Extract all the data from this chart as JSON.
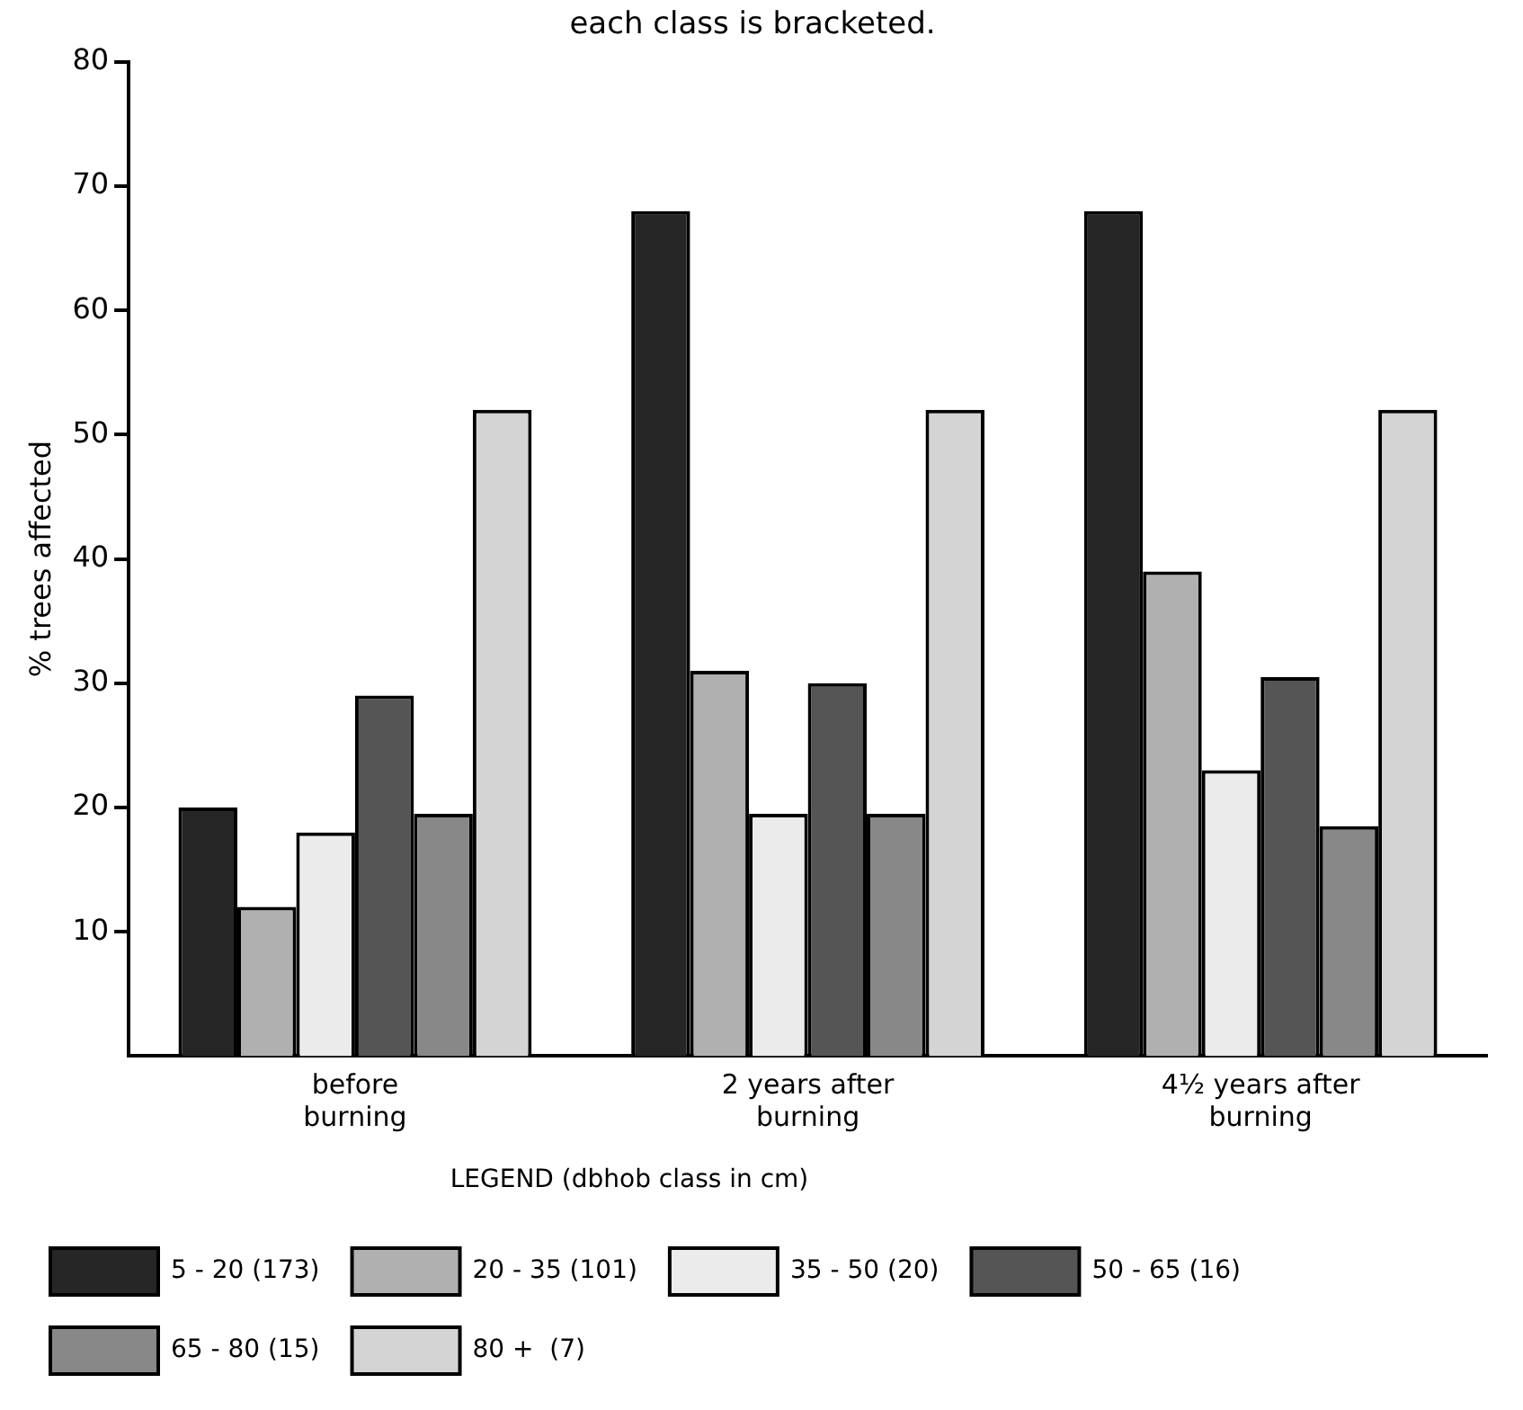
{
  "chart_data": {
    "type": "bar",
    "title": "each class is bracketed.",
    "ylabel": "% trees affected",
    "legend_title": "LEGEND (dbhob class in cm)",
    "categories": [
      "before burning",
      "2 years after burning",
      "4½ years after burning"
    ],
    "series": [
      {
        "name": "5 - 20 (173)",
        "color": "#262626",
        "values": [
          20,
          68,
          68
        ]
      },
      {
        "name": "20 - 35 (101)",
        "color": "#b0b0b0",
        "values": [
          12,
          31,
          39
        ]
      },
      {
        "name": "35 - 50 (20)",
        "color": "#ebebeb",
        "values": [
          18,
          19.5,
          23
        ]
      },
      {
        "name": "50 - 65 (16)",
        "color": "#555555",
        "values": [
          29,
          30,
          30.5
        ]
      },
      {
        "name": "65 - 80 (15)",
        "color": "#888888",
        "values": [
          19.5,
          19.5,
          18.5
        ]
      },
      {
        "name": "80 +  (7)",
        "color": "#d4d4d4",
        "values": [
          52,
          52,
          52
        ]
      }
    ],
    "ylim": [
      0,
      80
    ],
    "yticks": [
      10,
      20,
      30,
      40,
      50,
      60,
      70,
      80
    ],
    "grid": false,
    "legend": "bottom"
  }
}
